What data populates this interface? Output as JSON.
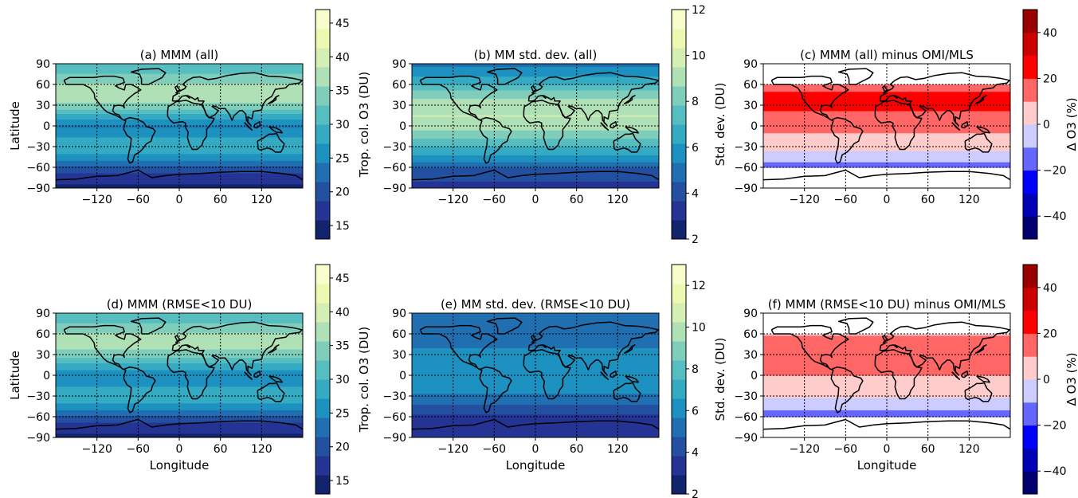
{
  "chart_data": [
    {
      "id": "a",
      "type": "heatmap",
      "title": "(a) MMM (all)",
      "xlabel": "",
      "ylabel": "Latitude",
      "colorbar_label": "Trop. col. O3 (DU)",
      "colormap": "YlGnBu",
      "levels": [
        13,
        47
      ],
      "colorbar_ticks": [
        15,
        20,
        25,
        30,
        35,
        40,
        45
      ],
      "xlim": [
        -180,
        180
      ],
      "ylim": [
        -90,
        90
      ],
      "xticks": [
        -120,
        -60,
        0,
        60,
        120
      ],
      "yticks": [
        -90,
        -60,
        -30,
        0,
        30,
        60,
        90
      ],
      "lat_profile": [
        [
          -90,
          15
        ],
        [
          -75,
          17
        ],
        [
          -60,
          21
        ],
        [
          -45,
          26
        ],
        [
          -30,
          29
        ],
        [
          -15,
          27
        ],
        [
          0,
          24
        ],
        [
          15,
          29
        ],
        [
          30,
          35
        ],
        [
          45,
          38
        ],
        [
          60,
          36
        ],
        [
          75,
          33
        ],
        [
          90,
          31
        ]
      ],
      "grid": true,
      "lat_cut": null
    },
    {
      "id": "b",
      "type": "heatmap",
      "title": "(b) MM std. dev. (all)",
      "xlabel": "",
      "ylabel": "",
      "colorbar_label": "Std. dev. (DU)",
      "colormap": "YlGnBu",
      "levels": [
        2,
        12
      ],
      "colorbar_ticks": [
        2,
        4,
        6,
        8,
        10,
        12
      ],
      "xlim": [
        -180,
        180
      ],
      "ylim": [
        -90,
        90
      ],
      "xticks": [
        -120,
        -60,
        0,
        60,
        120
      ],
      "yticks": [
        -90,
        -60,
        -30,
        0,
        30,
        60,
        90
      ],
      "lat_profile": [
        [
          -90,
          3
        ],
        [
          -75,
          4
        ],
        [
          -60,
          4.5
        ],
        [
          -45,
          6
        ],
        [
          -30,
          7
        ],
        [
          -15,
          8
        ],
        [
          0,
          9
        ],
        [
          15,
          9.5
        ],
        [
          30,
          9
        ],
        [
          45,
          8.5
        ],
        [
          60,
          7
        ],
        [
          75,
          6
        ],
        [
          90,
          5
        ]
      ],
      "grid": true,
      "lat_cut": null
    },
    {
      "id": "c",
      "type": "heatmap",
      "title": "(c) MMM (all) minus OMI/MLS",
      "xlabel": "",
      "ylabel": "",
      "colorbar_label": "Δ O3 (%)",
      "colormap": "seismic",
      "levels": [
        -50,
        50
      ],
      "colorbar_ticks": [
        -40,
        -20,
        0,
        20,
        40
      ],
      "xlim": [
        -180,
        180
      ],
      "ylim": [
        -90,
        90
      ],
      "xticks": [
        -120,
        -60,
        0,
        60,
        120
      ],
      "yticks": [
        -90,
        -60,
        -30,
        0,
        30,
        60,
        90
      ],
      "lat_profile": [
        [
          -60,
          -15
        ],
        [
          -50,
          -8
        ],
        [
          -40,
          -2
        ],
        [
          -30,
          3
        ],
        [
          -15,
          8
        ],
        [
          0,
          14
        ],
        [
          15,
          18
        ],
        [
          30,
          22
        ],
        [
          45,
          23
        ],
        [
          60,
          12
        ]
      ],
      "grid": true,
      "lat_cut": [
        -60,
        60
      ]
    },
    {
      "id": "d",
      "type": "heatmap",
      "title": "(d) MMM (RMSE<10 DU)",
      "xlabel": "Longitude",
      "ylabel": "Latitude",
      "colorbar_label": "Trop. col. O3 (DU)",
      "colormap": "YlGnBu",
      "levels": [
        13,
        47
      ],
      "colorbar_ticks": [
        15,
        20,
        25,
        30,
        35,
        40,
        45
      ],
      "xlim": [
        -180,
        180
      ],
      "ylim": [
        -90,
        90
      ],
      "xticks": [
        -120,
        -60,
        0,
        60,
        120
      ],
      "yticks": [
        -90,
        -60,
        -30,
        0,
        30,
        60,
        90
      ],
      "lat_profile": [
        [
          -90,
          15
        ],
        [
          -75,
          17
        ],
        [
          -60,
          21
        ],
        [
          -45,
          26
        ],
        [
          -30,
          29
        ],
        [
          -15,
          27
        ],
        [
          0,
          25
        ],
        [
          15,
          29
        ],
        [
          30,
          34
        ],
        [
          45,
          37
        ],
        [
          60,
          36
        ],
        [
          75,
          33
        ],
        [
          90,
          31
        ]
      ],
      "grid": true,
      "lat_cut": null
    },
    {
      "id": "e",
      "type": "heatmap",
      "title": "(e) MM std. dev. (RMSE<10 DU)",
      "xlabel": "Longitude",
      "ylabel": "",
      "colorbar_label": "Std. dev. (DU)",
      "colormap": "YlGnBu",
      "levels": [
        2,
        13
      ],
      "colorbar_ticks": [
        2,
        4,
        6,
        8,
        10,
        12
      ],
      "xlim": [
        -180,
        180
      ],
      "ylim": [
        -90,
        90
      ],
      "xticks": [
        -120,
        -60,
        0,
        60,
        120
      ],
      "yticks": [
        -90,
        -60,
        -30,
        0,
        30,
        60,
        90
      ],
      "lat_profile": [
        [
          -90,
          3
        ],
        [
          -75,
          3.2
        ],
        [
          -60,
          3.5
        ],
        [
          -45,
          4.5
        ],
        [
          -30,
          5.5
        ],
        [
          -15,
          6
        ],
        [
          0,
          6.5
        ],
        [
          15,
          6.5
        ],
        [
          30,
          6
        ],
        [
          45,
          5.5
        ],
        [
          60,
          5
        ],
        [
          75,
          5
        ],
        [
          90,
          5
        ]
      ],
      "grid": true,
      "lat_cut": null
    },
    {
      "id": "f",
      "type": "heatmap",
      "title": "(f) MMM (RMSE<10 DU) minus OMI/MLS",
      "xlabel": "Longitude",
      "ylabel": "",
      "colorbar_label": "Δ O3 (%)",
      "colormap": "seismic",
      "levels": [
        -50,
        50
      ],
      "colorbar_ticks": [
        -40,
        -20,
        0,
        20,
        40
      ],
      "xlim": [
        -180,
        180
      ],
      "ylim": [
        -90,
        90
      ],
      "xticks": [
        -120,
        -60,
        0,
        60,
        120
      ],
      "yticks": [
        -90,
        -60,
        -30,
        0,
        30,
        60,
        90
      ],
      "lat_profile": [
        [
          -60,
          -15
        ],
        [
          -50,
          -10
        ],
        [
          -40,
          -5
        ],
        [
          -30,
          2
        ],
        [
          -15,
          5
        ],
        [
          0,
          10
        ],
        [
          15,
          12
        ],
        [
          30,
          16
        ],
        [
          45,
          18
        ],
        [
          60,
          8
        ]
      ],
      "grid": true,
      "lat_cut": [
        -60,
        60
      ]
    }
  ]
}
